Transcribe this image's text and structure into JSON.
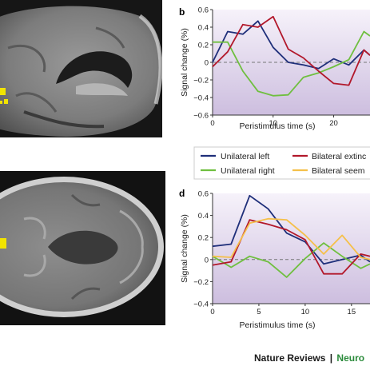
{
  "footer": {
    "journal": "Nature Reviews",
    "separator": "|",
    "journal_subtitle": "Neuro"
  },
  "legend": {
    "items": [
      {
        "label": "Unilateral left",
        "color": "#1f2f7a"
      },
      {
        "label": "Unilateral right",
        "color": "#6fbf3f"
      },
      {
        "label": "Bilateral extinc",
        "color": "#b2182b"
      },
      {
        "label": "Bilateral seem",
        "color": "#f5c04a"
      }
    ]
  },
  "chart_data": [
    {
      "type": "line",
      "panel_label": "b",
      "xlabel": "Peristimulus time (s)",
      "ylabel": "Signal change (%)",
      "xlim": [
        0,
        26
      ],
      "ylim": [
        -0.6,
        0.6
      ],
      "x_ticks": [
        0,
        10,
        20
      ],
      "y_ticks": [
        -0.6,
        -0.4,
        -0.2,
        0,
        0.2,
        0.4,
        0.6
      ],
      "y_tick_labels": [
        "−0.6",
        "−0.4",
        "−0.2",
        "0",
        "0.2",
        "0.4",
        "0.6"
      ],
      "x_tick_labels": [
        "0",
        "10",
        "20"
      ],
      "zero_line": "dashed",
      "series": [
        {
          "name": "Unilateral left",
          "color": "#1f2f7a",
          "x": [
            0,
            2.5,
            5,
            7.5,
            10,
            12.5,
            15,
            17.5,
            20,
            22.5,
            25,
            26
          ],
          "y": [
            0.0,
            0.35,
            0.32,
            0.47,
            0.17,
            0.0,
            -0.03,
            -0.07,
            0.04,
            -0.03,
            0.14,
            0.08
          ]
        },
        {
          "name": "Unilateral right",
          "color": "#6fbf3f",
          "x": [
            0,
            2.5,
            5,
            7.5,
            10,
            12.5,
            15,
            17.5,
            20,
            22.5,
            25,
            26
          ],
          "y": [
            0.23,
            0.23,
            -0.1,
            -0.33,
            -0.38,
            -0.37,
            -0.17,
            -0.12,
            -0.05,
            0.03,
            0.35,
            0.3
          ]
        },
        {
          "name": "Bilateral extinc",
          "color": "#b2182b",
          "x": [
            0,
            2.5,
            5,
            7.5,
            10,
            12.5,
            15,
            17.5,
            20,
            22.5,
            25,
            26
          ],
          "y": [
            -0.05,
            0.12,
            0.43,
            0.4,
            0.52,
            0.15,
            0.05,
            -0.1,
            -0.24,
            -0.26,
            0.14,
            0.08
          ]
        }
      ]
    },
    {
      "type": "line",
      "panel_label": "d",
      "xlabel": "Peristimulus time (s)",
      "ylabel": "Signal change (%)",
      "xlim": [
        0,
        17
      ],
      "ylim": [
        -0.4,
        0.6
      ],
      "x_ticks": [
        0,
        5,
        10,
        15
      ],
      "y_ticks": [
        -0.4,
        -0.2,
        0,
        0.2,
        0.4,
        0.6
      ],
      "y_tick_labels": [
        "−0.4",
        "−0.2",
        "0",
        "0.2",
        "0.4",
        "0.6"
      ],
      "x_tick_labels": [
        "0",
        "5",
        "10",
        "15"
      ],
      "zero_line": "dashed",
      "series": [
        {
          "name": "Unilateral left",
          "color": "#1f2f7a",
          "x": [
            0,
            2,
            4,
            6,
            8,
            10,
            12,
            14,
            16,
            17
          ],
          "y": [
            0.12,
            0.14,
            0.58,
            0.46,
            0.24,
            0.16,
            -0.04,
            0.0,
            0.04,
            -0.02
          ]
        },
        {
          "name": "Unilateral right",
          "color": "#6fbf3f",
          "x": [
            0,
            2,
            4,
            6,
            8,
            10,
            12,
            14,
            16,
            17
          ],
          "y": [
            0.03,
            -0.07,
            0.03,
            -0.02,
            -0.16,
            0.01,
            0.15,
            0.03,
            -0.08,
            -0.04
          ]
        },
        {
          "name": "Bilateral extinc",
          "color": "#b2182b",
          "x": [
            0,
            2,
            4,
            6,
            8,
            10,
            12,
            14,
            16,
            17
          ],
          "y": [
            -0.05,
            -0.02,
            0.36,
            0.32,
            0.27,
            0.18,
            -0.13,
            -0.13,
            0.05,
            0.03
          ]
        },
        {
          "name": "Bilateral seem",
          "color": "#f5c04a",
          "x": [
            0,
            2,
            4,
            6,
            8,
            10,
            12,
            14,
            16,
            17
          ],
          "y": [
            0.03,
            0.02,
            0.33,
            0.37,
            0.36,
            0.22,
            0.05,
            0.22,
            0.02,
            0.0
          ]
        }
      ]
    }
  ]
}
